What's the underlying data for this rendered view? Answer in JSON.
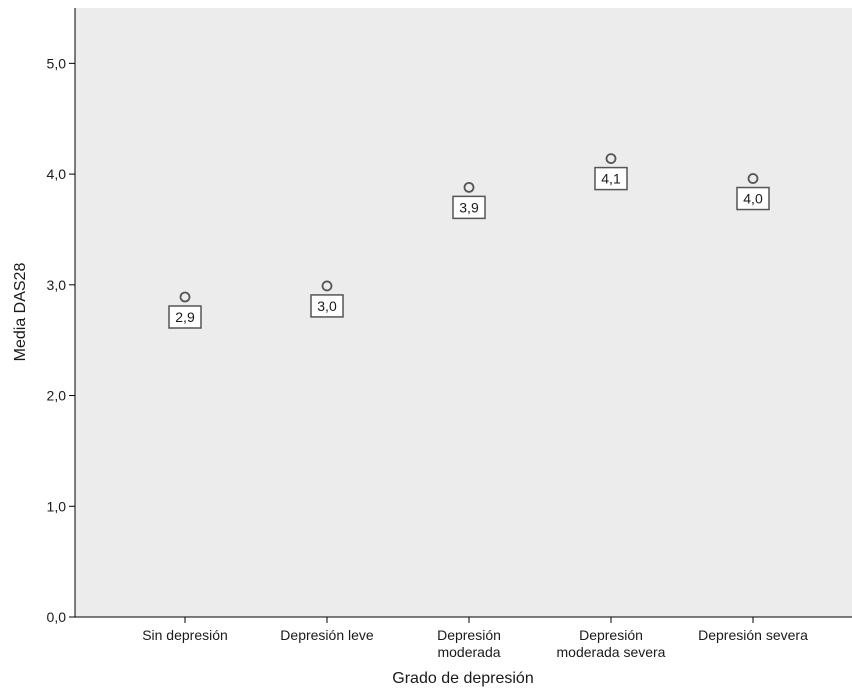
{
  "chart_data": {
    "type": "scatter",
    "xlabel": "Grado de depresión",
    "ylabel": "Media DAS28",
    "ylim": [
      0,
      5.5
    ],
    "y_ticks": [
      "0,0",
      "1,0",
      "2,0",
      "3,0",
      "4,0",
      "5,0"
    ],
    "y_tick_values": [
      0,
      1,
      2,
      3,
      4,
      5
    ],
    "categories": [
      [
        "Sin depresión"
      ],
      [
        "Depresión leve"
      ],
      [
        "Depresión",
        "moderada"
      ],
      [
        "Depresión",
        "moderada severa"
      ],
      [
        "Depresión severa"
      ]
    ],
    "values": [
      2.89,
      2.99,
      3.88,
      4.14,
      3.96
    ],
    "data_labels": [
      "2,9",
      "3,0",
      "3,9",
      "4,1",
      "4,0"
    ],
    "grid": false,
    "plot_background": "#ececec",
    "marker_color": "#555555"
  }
}
